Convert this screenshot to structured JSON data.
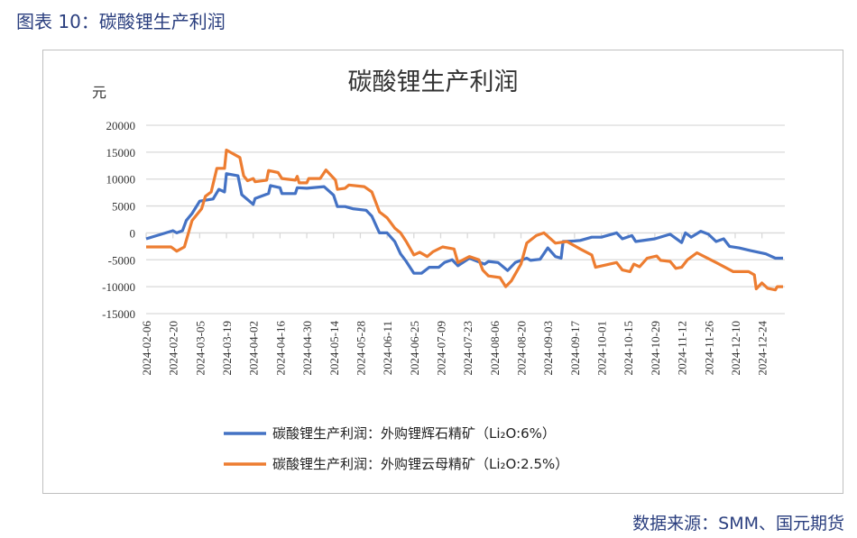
{
  "figure_title": "图表 10：碳酸锂生产利润",
  "source": "数据来源：SMM、国元期货",
  "chart_data": {
    "type": "line",
    "title": "碳酸锂生产利润",
    "ylabel": "元",
    "xlabel": "",
    "ylim": [
      -15000,
      20000
    ],
    "yticks": [
      20000,
      15000,
      10000,
      5000,
      0,
      -5000,
      -10000,
      -15000
    ],
    "ytick_labels": [
      "20000",
      "15000",
      "10000",
      "5000",
      "0",
      "-5000",
      "-10000",
      "-15000"
    ],
    "x_unit": "days since 2024-02-06",
    "x_range": [
      0,
      333
    ],
    "xtick_labels": [
      "2024-02-06",
      "2024-02-20",
      "2024-03-05",
      "2024-03-19",
      "2024-04-02",
      "2024-04-16",
      "2024-04-30",
      "2024-05-14",
      "2024-05-28",
      "2024-06-11",
      "2024-06-25",
      "2024-07-09",
      "2024-07-23",
      "2024-08-06",
      "2024-08-20",
      "2024-09-03",
      "2024-09-17",
      "2024-10-01",
      "2024-10-15",
      "2024-10-29",
      "2024-11-12",
      "2024-11-26",
      "2024-12-10",
      "2024-12-24"
    ],
    "grid": true,
    "legend_position": "bottom",
    "series": [
      {
        "name": "碳酸锂生产利润：外购锂辉石精矿（Li₂O:6%）",
        "color": "#4472c4",
        "x": [
          0,
          14,
          16,
          19,
          21,
          24,
          28,
          35,
          38,
          41,
          42,
          48,
          50,
          56,
          57,
          64,
          65,
          70,
          71,
          78,
          79,
          84,
          93,
          98,
          100,
          104,
          108,
          115,
          118,
          122,
          126,
          130,
          133,
          136,
          140,
          144,
          148,
          153,
          156,
          160,
          163,
          169,
          177,
          179,
          184,
          189,
          193,
          199,
          201,
          206,
          210,
          214,
          217,
          218,
          224,
          227,
          233,
          238,
          246,
          249,
          254,
          256,
          266,
          274,
          280,
          282,
          285,
          290,
          294,
          298,
          302,
          305,
          310,
          316,
          324,
          329,
          333
        ],
        "y": [
          -1100,
          400,
          0,
          400,
          2300,
          3600,
          5900,
          6300,
          8100,
          7600,
          11000,
          10600,
          7100,
          5300,
          6400,
          7300,
          8800,
          8400,
          7300,
          7300,
          8400,
          8300,
          8600,
          7000,
          4900,
          4900,
          4500,
          4200,
          3100,
          0,
          0,
          -1600,
          -3900,
          -5300,
          -7500,
          -7500,
          -6400,
          -6400,
          -5500,
          -5000,
          -6100,
          -4700,
          -5800,
          -5300,
          -5500,
          -7000,
          -5500,
          -4700,
          -5100,
          -4900,
          -2800,
          -4400,
          -4700,
          -1600,
          -1500,
          -1400,
          -800,
          -800,
          0,
          -1100,
          -500,
          -1600,
          -1100,
          -250,
          -1800,
          0,
          -800,
          300,
          -250,
          -1600,
          -1100,
          -2500,
          -2800,
          -3300,
          -3900,
          -4700,
          -4700
        ]
      },
      {
        "name": "碳酸锂生产利润：外购锂云母精矿（Li₂O:2.5%）",
        "color": "#ed7d31",
        "x": [
          0,
          13,
          16,
          20,
          24,
          29,
          31,
          34,
          37,
          41,
          42,
          49,
          51,
          53,
          56,
          57,
          63,
          64,
          69,
          71,
          78,
          79,
          80,
          84,
          85,
          91,
          94,
          99,
          100,
          104,
          106,
          114,
          118,
          122,
          126,
          130,
          133,
          136,
          140,
          143,
          147,
          150,
          155,
          161,
          163,
          169,
          174,
          176,
          179,
          185,
          188,
          191,
          196,
          199,
          204,
          208,
          214,
          220,
          227,
          233,
          235,
          246,
          249,
          253,
          255,
          258,
          262,
          267,
          269,
          274,
          277,
          280,
          283,
          288,
          293,
          298,
          307,
          315,
          318,
          319,
          322,
          325,
          329,
          330,
          333
        ],
        "y": [
          -2600,
          -2600,
          -3400,
          -2600,
          2300,
          4500,
          6800,
          7600,
          12000,
          12000,
          15400,
          14000,
          10600,
          9700,
          10100,
          9500,
          9800,
          11600,
          11200,
          10100,
          9800,
          10500,
          9300,
          9300,
          10100,
          10100,
          11700,
          9800,
          8100,
          8300,
          8900,
          8600,
          7600,
          3900,
          2800,
          900,
          0,
          -1600,
          -4100,
          -3600,
          -4400,
          -3500,
          -2600,
          -3000,
          -5500,
          -4400,
          -5000,
          -6900,
          -8000,
          -8300,
          -10000,
          -8900,
          -5800,
          -1900,
          -500,
          0,
          -1900,
          -1600,
          -3000,
          -4100,
          -6400,
          -5500,
          -6900,
          -7200,
          -5800,
          -6300,
          -4700,
          -4300,
          -5100,
          -5300,
          -6600,
          -6400,
          -5000,
          -3700,
          -4600,
          -5500,
          -7200,
          -7200,
          -7800,
          -10400,
          -9300,
          -10300,
          -10600,
          -10000,
          -10000
        ]
      }
    ]
  }
}
